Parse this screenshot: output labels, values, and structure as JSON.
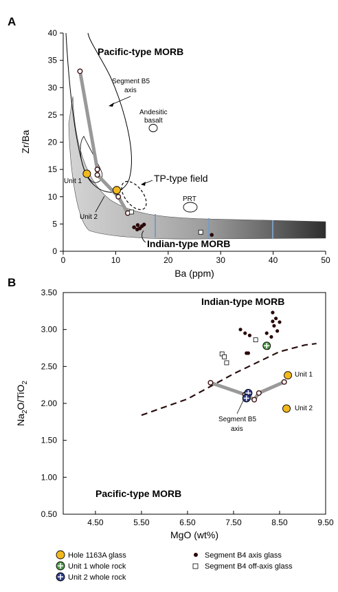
{
  "chart_data": [
    {
      "panel": "A",
      "type": "scatter",
      "xlabel": "Ba (ppm)",
      "ylabel": "Zr/Ba",
      "xlim": [
        0,
        50
      ],
      "ylim": [
        0,
        40
      ],
      "xticks": [
        0,
        10,
        20,
        30,
        40,
        50
      ],
      "yticks": [
        0,
        5,
        10,
        15,
        20,
        25,
        30,
        35,
        40
      ],
      "annotations": {
        "pacific": "Pacific-type MORB",
        "segment_b5": [
          "Segment B5",
          "axis"
        ],
        "andesitic": [
          "Andesitic",
          "basalt"
        ],
        "tp_field": "TP-type field",
        "prt": "PRT",
        "indian": "Indian-type MORB",
        "unit1": "Unit 1",
        "unit2": "Unit 2"
      },
      "segment_b5_axis": [
        [
          3.2,
          33
        ],
        [
          6.5,
          15
        ],
        [
          6.5,
          14
        ],
        [
          10.5,
          10
        ],
        [
          12.3,
          7
        ]
      ],
      "hole_1163A_glass": [
        [
          4.5,
          14.2
        ],
        [
          10.2,
          11.2
        ]
      ],
      "segment_b4_axis_glass": [
        [
          13.5,
          4.4
        ],
        [
          14.2,
          4.8
        ],
        [
          14.6,
          4.2
        ],
        [
          15.0,
          4.6
        ],
        [
          15.4,
          4.9
        ],
        [
          14.1,
          4.0
        ],
        [
          28.3,
          3.0
        ]
      ],
      "segment_b4_off_axis_glass": [
        [
          13.0,
          7.2
        ],
        [
          26.2,
          3.5
        ]
      ]
    },
    {
      "panel": "B",
      "type": "scatter",
      "xlabel": "MgO (wt%)",
      "ylabel": "Na2O/TiO2",
      "xlim": [
        3.8,
        9.5
      ],
      "ylim": [
        0.5,
        3.5
      ],
      "xticks": [
        4.5,
        5.5,
        6.5,
        7.5,
        8.5,
        9.5
      ],
      "yticks": [
        0.5,
        1.0,
        1.5,
        2.0,
        2.5,
        3.0,
        3.5
      ],
      "annotations": {
        "indian": "Indian-type MORB",
        "pacific": "Pacific-type MORB",
        "segment_b5": [
          "Segment B5",
          "axis"
        ],
        "unit1": "Unit 1",
        "unit2": "Unit 2"
      },
      "segment_b5_axis": [
        [
          7.0,
          2.28
        ],
        [
          7.75,
          2.12
        ],
        [
          7.95,
          2.05
        ],
        [
          8.05,
          2.14
        ],
        [
          8.6,
          2.29
        ]
      ],
      "hole_1163A_glass": [
        [
          8.68,
          2.38
        ],
        [
          8.65,
          1.93
        ]
      ],
      "unit1_whole_rock": [
        [
          8.22,
          2.78
        ]
      ],
      "unit2_whole_rock": [
        [
          7.82,
          2.14
        ],
        [
          7.78,
          2.07
        ]
      ],
      "segment_b4_axis_glass": [
        [
          8.35,
          3.23
        ],
        [
          8.42,
          3.15
        ],
        [
          8.35,
          3.11
        ],
        [
          8.5,
          3.1
        ],
        [
          8.38,
          3.05
        ],
        [
          8.45,
          2.98
        ],
        [
          7.65,
          3.0
        ],
        [
          7.75,
          2.95
        ],
        [
          7.85,
          2.92
        ],
        [
          8.22,
          2.95
        ],
        [
          8.32,
          2.9
        ],
        [
          7.78,
          2.68
        ],
        [
          7.82,
          2.68
        ],
        [
          8.25,
          2.75
        ]
      ],
      "segment_b4_off_axis_glass": [
        [
          7.25,
          2.67
        ],
        [
          7.3,
          2.63
        ],
        [
          7.35,
          2.55
        ],
        [
          7.98,
          2.86
        ]
      ],
      "boundary_line": [
        [
          5.5,
          1.84
        ],
        [
          6.5,
          2.06
        ],
        [
          7.5,
          2.4
        ],
        [
          8.5,
          2.7
        ],
        [
          9.05,
          2.79
        ],
        [
          9.3,
          2.81
        ]
      ]
    }
  ],
  "panel_labels": [
    "A",
    "B"
  ],
  "legend": [
    {
      "label": "Hole 1163A glass",
      "marker": "circle-yellow"
    },
    {
      "label": "Unit 1 whole rock",
      "marker": "circle-plus-green"
    },
    {
      "label": "Unit 2 whole rock",
      "marker": "circle-plus-blue"
    },
    {
      "label": "Segment B4 axis glass",
      "marker": "dot-black"
    },
    {
      "label": "Segment B4 off-axis glass",
      "marker": "square-open"
    }
  ],
  "colors": {
    "glass": "#f2b81c",
    "unit1": "#4e9a4a",
    "unit2": "#2f3c8f",
    "axis_line": "#999999",
    "band_light": "#c8c8c8",
    "band_dark": "#333333"
  }
}
